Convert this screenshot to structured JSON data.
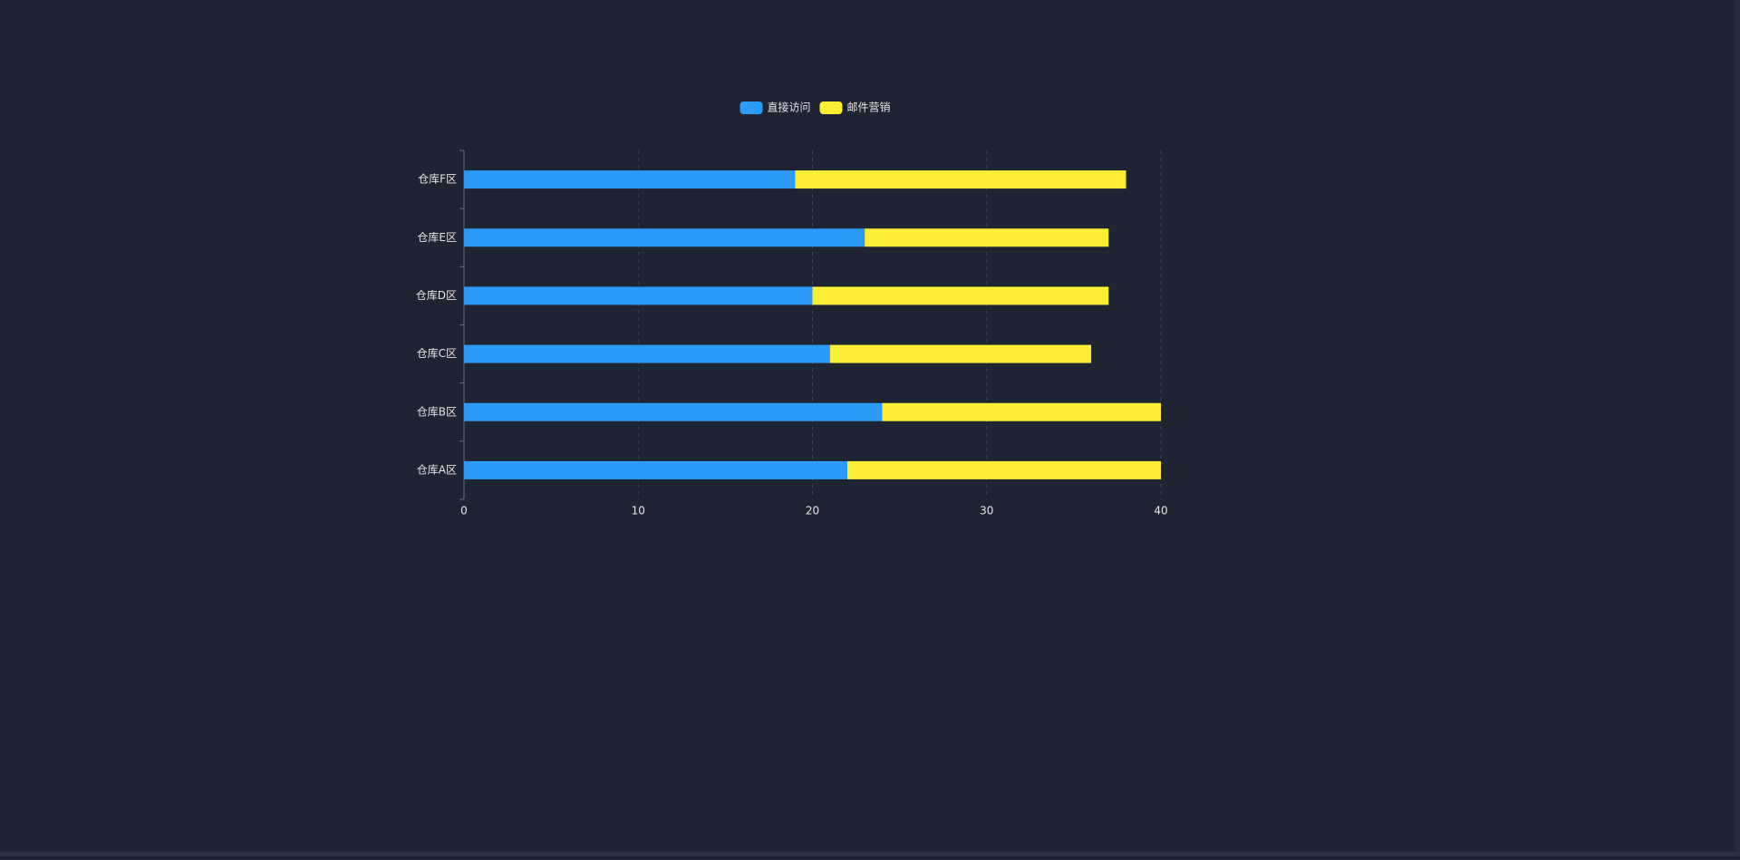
{
  "colors": {
    "background": "#1f2433",
    "axis": "#6e7079",
    "grid": "#3a4052",
    "label": "#e6e6e6",
    "series": [
      "#2b9bf7",
      "#fcee34"
    ]
  },
  "chart_data": {
    "type": "bar",
    "orientation": "horizontal",
    "stacked": true,
    "categories": [
      "仓库A区",
      "仓库B区",
      "仓库C区",
      "仓库D区",
      "仓库E区",
      "仓库F区"
    ],
    "series": [
      {
        "name": "直接访问",
        "values": [
          22,
          24,
          21,
          20,
          23,
          19
        ]
      },
      {
        "name": "邮件营销",
        "values": [
          18,
          16,
          15,
          17,
          14,
          19
        ]
      }
    ],
    "xlim": [
      0,
      40
    ],
    "xticks": [
      0,
      10,
      20,
      30,
      40
    ],
    "grid": "vertical dashed",
    "legend_position": "top-center",
    "title": "",
    "xlabel": "",
    "ylabel": ""
  }
}
